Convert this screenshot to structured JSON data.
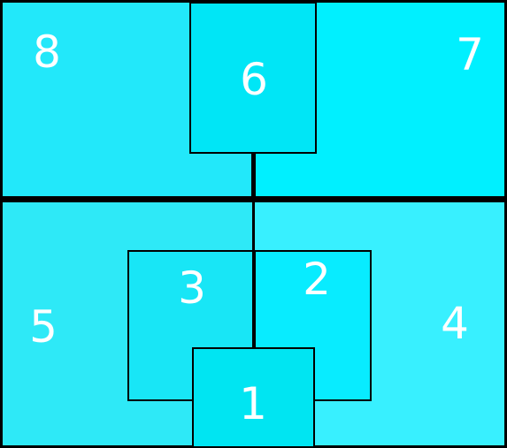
{
  "regions": {
    "r1": {
      "label": "1",
      "color": "#00e5f2"
    },
    "r2": {
      "label": "2",
      "color": "#08ecff"
    },
    "r3": {
      "label": "3",
      "color": "#18e6f6"
    },
    "r4": {
      "label": "4",
      "color": "#38f0ff"
    },
    "r5": {
      "label": "5",
      "color": "#2ee9f7"
    },
    "r6": {
      "label": "6",
      "color": "#00e6f6"
    },
    "r7": {
      "label": "7",
      "color": "#00f0ff"
    },
    "r8": {
      "label": "8",
      "color": "#22e8fa"
    }
  },
  "line_color": "#000000"
}
